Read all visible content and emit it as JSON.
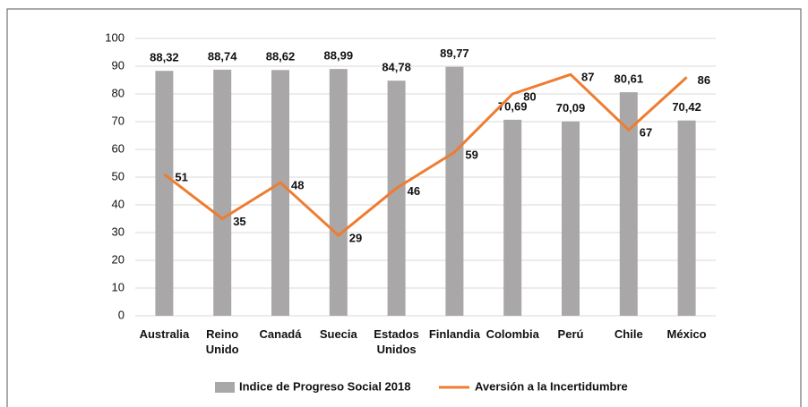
{
  "chart_data": {
    "type": "bar",
    "categories": [
      "Australia",
      "Reino Unido",
      "Canadá",
      "Suecia",
      "Estados Unidos",
      "Finlandia",
      "Colombia",
      "Perú",
      "Chile",
      "México"
    ],
    "series": [
      {
        "name": "Indice de Progreso Social 2018",
        "type": "bar",
        "color": "#a9a7a8",
        "values": [
          88.32,
          88.74,
          88.62,
          88.99,
          84.78,
          89.77,
          70.69,
          70.09,
          80.61,
          70.42
        ],
        "value_labels": [
          "88,32",
          "88,74",
          "88,62",
          "88,99",
          "84,78",
          "89,77",
          "70,69",
          "70,09",
          "80,61",
          "70,42"
        ]
      },
      {
        "name": "Aversión a la Incertidumbre",
        "type": "line",
        "color": "#ed7d31",
        "values": [
          51,
          35,
          48,
          29,
          46,
          59,
          80,
          87,
          67,
          86
        ]
      }
    ],
    "ylim": [
      0,
      100
    ],
    "yticks": [
      0,
      10,
      20,
      30,
      40,
      50,
      60,
      70,
      80,
      90,
      100
    ],
    "grid": true,
    "legend": "bottom"
  }
}
